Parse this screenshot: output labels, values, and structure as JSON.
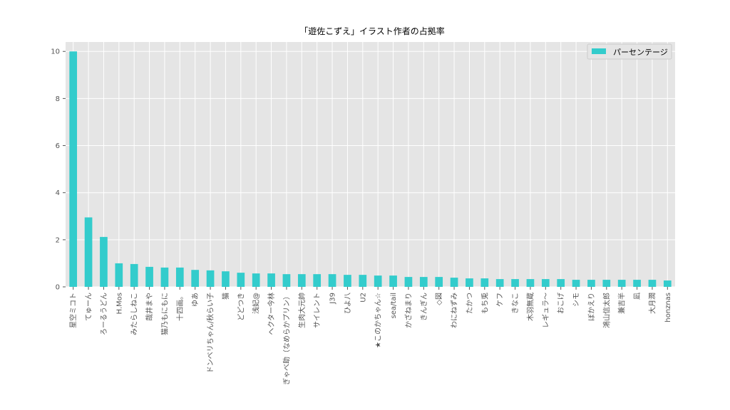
{
  "chart_data": {
    "type": "bar",
    "title": "「遊佐こずえ」イラスト作者の占拠率",
    "xlabel": "",
    "ylabel": "",
    "ylim": [
      0,
      10.4
    ],
    "yticks": [
      0,
      2,
      4,
      6,
      8,
      10
    ],
    "grid": true,
    "legend_position": "top-right",
    "bar_color": "#33cccc",
    "background_color": "#e5e5e5",
    "categories": [
      "星空ミコト",
      "てゅーん",
      "ろーるうどん",
      "H.Mos",
      "みたらしねこ",
      "哉井まや",
      "猫乃もにもに",
      "十四画。",
      "ゆあ",
      "ドンベリちゃん/秋らい子",
      "猫",
      "どどつき",
      "浅妃@",
      "ヘクター今林",
      "ぎゃべ助（なめらかプリン）",
      "生肉大元帥",
      "サイレント",
      "J39",
      "ひよ八",
      "U2",
      "★このかちゃん☆",
      "sea/tail",
      "かざねまり",
      "きんぎん",
      "◇図",
      "わにねずみ",
      "たかつ",
      "もち兎",
      "ケフ",
      "きなこ",
      "木羽無蔵",
      "レギュラ〜",
      "おこげ",
      "シモ",
      "ぼかえり",
      "鴻山信太郎",
      "兼吉半",
      "凪",
      "大月潤",
      "honznas"
    ],
    "series": [
      {
        "name": "パーセンテージ",
        "values": [
          10.0,
          2.95,
          2.12,
          1.0,
          0.97,
          0.85,
          0.82,
          0.82,
          0.72,
          0.7,
          0.66,
          0.6,
          0.57,
          0.57,
          0.54,
          0.54,
          0.54,
          0.54,
          0.51,
          0.51,
          0.48,
          0.48,
          0.42,
          0.42,
          0.42,
          0.39,
          0.36,
          0.36,
          0.33,
          0.33,
          0.33,
          0.33,
          0.33,
          0.3,
          0.3,
          0.3,
          0.3,
          0.3,
          0.3,
          0.27
        ]
      }
    ]
  }
}
